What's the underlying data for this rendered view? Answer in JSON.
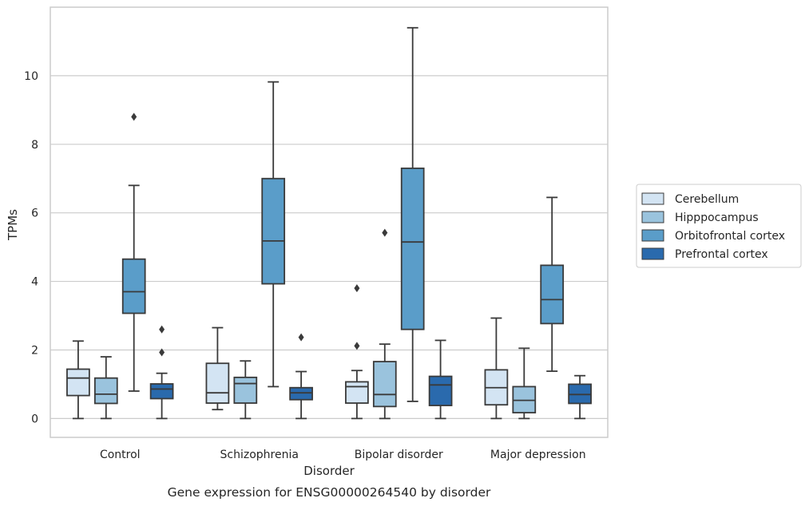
{
  "chart_data": {
    "type": "box",
    "caption": "Gene expression for ENSG00000264540 by disorder",
    "xlabel": "Disorder",
    "ylabel": "TPMs",
    "ylim": [
      -0.55,
      12.0
    ],
    "yticks": [
      "0",
      "2",
      "4",
      "6",
      "8",
      "10"
    ],
    "ytick_values": [
      0,
      2,
      4,
      6,
      8,
      10
    ],
    "grid": "horizontal",
    "legend_position": "right",
    "categories": [
      "Control",
      "Schizophrenia",
      "Bipolar disorder",
      "Major depression"
    ],
    "series": [
      {
        "name": "Cerebellum",
        "color": "#d3e4f3",
        "boxes": [
          {
            "whisker_low": 0.0,
            "q1": 0.67,
            "median": 1.18,
            "q3": 1.44,
            "whisker_high": 2.26,
            "outliers": []
          },
          {
            "whisker_low": 0.26,
            "q1": 0.45,
            "median": 0.75,
            "q3": 1.61,
            "whisker_high": 2.65,
            "outliers": []
          },
          {
            "whisker_low": 0.0,
            "q1": 0.45,
            "median": 0.93,
            "q3": 1.07,
            "whisker_high": 1.4,
            "outliers": [
              2.12,
              3.8
            ]
          },
          {
            "whisker_low": 0.0,
            "q1": 0.4,
            "median": 0.9,
            "q3": 1.42,
            "whisker_high": 2.93,
            "outliers": []
          }
        ]
      },
      {
        "name": "Hipppocampus",
        "color": "#9ac3dd",
        "boxes": [
          {
            "whisker_low": 0.0,
            "q1": 0.44,
            "median": 0.71,
            "q3": 1.18,
            "whisker_high": 1.8,
            "outliers": []
          },
          {
            "whisker_low": 0.0,
            "q1": 0.45,
            "median": 1.02,
            "q3": 1.2,
            "whisker_high": 1.68,
            "outliers": []
          },
          {
            "whisker_low": 0.0,
            "q1": 0.35,
            "median": 0.7,
            "q3": 1.66,
            "whisker_high": 2.17,
            "outliers": [
              5.42
            ]
          },
          {
            "whisker_low": 0.0,
            "q1": 0.17,
            "median": 0.53,
            "q3": 0.93,
            "whisker_high": 2.05,
            "outliers": []
          }
        ]
      },
      {
        "name": "Orbitofrontal cortex",
        "color": "#5a9dc9",
        "boxes": [
          {
            "whisker_low": 0.8,
            "q1": 3.07,
            "median": 3.7,
            "q3": 4.65,
            "whisker_high": 6.8,
            "outliers": [
              8.8
            ]
          },
          {
            "whisker_low": 0.93,
            "q1": 3.93,
            "median": 5.18,
            "q3": 7.0,
            "whisker_high": 9.82,
            "outliers": []
          },
          {
            "whisker_low": 0.5,
            "q1": 2.6,
            "median": 5.15,
            "q3": 7.3,
            "whisker_high": 11.4,
            "outliers": []
          },
          {
            "whisker_low": 1.38,
            "q1": 2.77,
            "median": 3.47,
            "q3": 4.47,
            "whisker_high": 6.45,
            "outliers": []
          }
        ]
      },
      {
        "name": "Prefrontal cortex",
        "color": "#2a6aad",
        "boxes": [
          {
            "whisker_low": 0.0,
            "q1": 0.58,
            "median": 0.86,
            "q3": 1.01,
            "whisker_high": 1.32,
            "outliers": [
              1.93,
              2.6
            ]
          },
          {
            "whisker_low": 0.0,
            "q1": 0.55,
            "median": 0.75,
            "q3": 0.9,
            "whisker_high": 1.37,
            "outliers": [
              2.37
            ]
          },
          {
            "whisker_low": 0.0,
            "q1": 0.38,
            "median": 0.98,
            "q3": 1.23,
            "whisker_high": 2.28,
            "outliers": []
          },
          {
            "whisker_low": 0.0,
            "q1": 0.44,
            "median": 0.7,
            "q3": 1.0,
            "whisker_high": 1.25,
            "outliers": []
          }
        ]
      }
    ]
  }
}
